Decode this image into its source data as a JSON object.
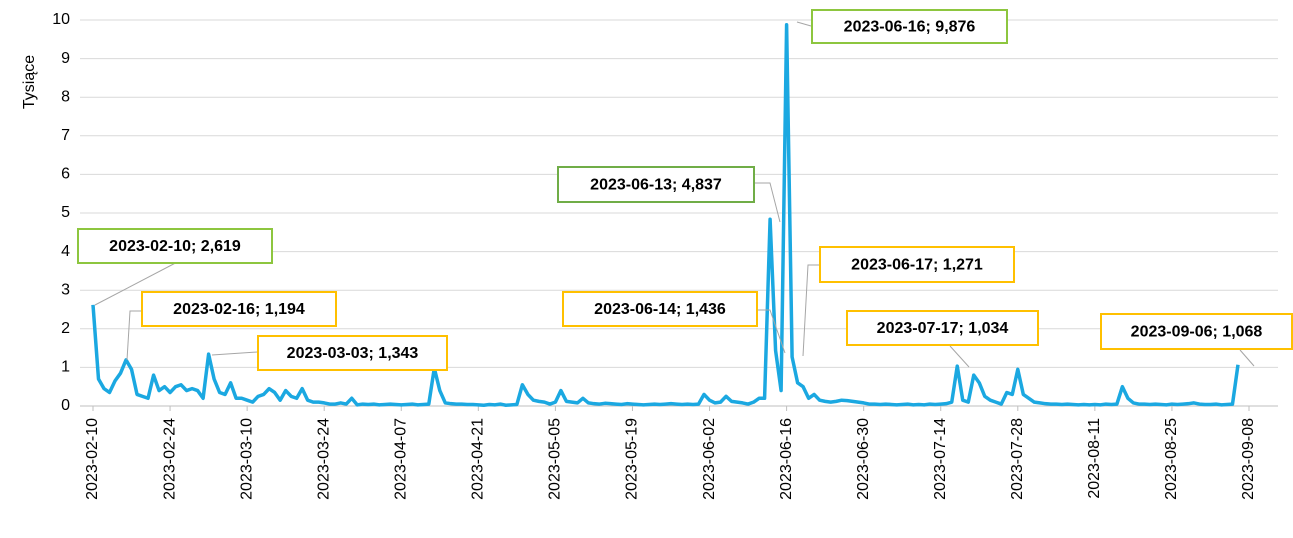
{
  "chart_data": {
    "type": "line",
    "y_label": "Tysiące",
    "color": "#1ba8e1",
    "grid": true,
    "ylim": [
      0,
      10
    ],
    "yticks": [
      0,
      1,
      2,
      3,
      4,
      5,
      6,
      7,
      8,
      9,
      10
    ],
    "xlim": [
      "2023-02-10",
      "2023-09-08"
    ],
    "xticks": [
      "2023-02-10",
      "2023-02-24",
      "2023-03-10",
      "2023-03-24",
      "2023-04-07",
      "2023-04-21",
      "2023-05-05",
      "2023-05-19",
      "2023-06-02",
      "2023-06-16",
      "2023-06-30",
      "2023-07-14",
      "2023-07-28",
      "2023-08-11",
      "2023-08-25",
      "2023-09-08"
    ],
    "x": [
      "2023-02-10",
      "2023-02-11",
      "2023-02-12",
      "2023-02-13",
      "2023-02-14",
      "2023-02-15",
      "2023-02-16",
      "2023-02-17",
      "2023-02-18",
      "2023-02-19",
      "2023-02-20",
      "2023-02-21",
      "2023-02-22",
      "2023-02-23",
      "2023-02-24",
      "2023-02-25",
      "2023-02-26",
      "2023-02-27",
      "2023-02-28",
      "2023-03-01",
      "2023-03-02",
      "2023-03-03",
      "2023-03-04",
      "2023-03-05",
      "2023-03-06",
      "2023-03-07",
      "2023-03-08",
      "2023-03-09",
      "2023-03-10",
      "2023-03-11",
      "2023-03-12",
      "2023-03-13",
      "2023-03-14",
      "2023-03-15",
      "2023-03-16",
      "2023-03-17",
      "2023-03-18",
      "2023-03-19",
      "2023-03-20",
      "2023-03-21",
      "2023-03-22",
      "2023-03-23",
      "2023-03-24",
      "2023-03-25",
      "2023-03-26",
      "2023-03-27",
      "2023-03-28",
      "2023-03-29",
      "2023-03-30",
      "2023-03-31",
      "2023-04-01",
      "2023-04-02",
      "2023-04-03",
      "2023-04-04",
      "2023-04-05",
      "2023-04-06",
      "2023-04-07",
      "2023-04-08",
      "2023-04-09",
      "2023-04-10",
      "2023-04-11",
      "2023-04-12",
      "2023-04-13",
      "2023-04-14",
      "2023-04-15",
      "2023-04-16",
      "2023-04-17",
      "2023-04-18",
      "2023-04-19",
      "2023-04-20",
      "2023-04-21",
      "2023-04-22",
      "2023-04-23",
      "2023-04-24",
      "2023-04-25",
      "2023-04-26",
      "2023-04-27",
      "2023-04-28",
      "2023-04-29",
      "2023-04-30",
      "2023-05-01",
      "2023-05-02",
      "2023-05-03",
      "2023-05-04",
      "2023-05-05",
      "2023-05-06",
      "2023-05-07",
      "2023-05-08",
      "2023-05-09",
      "2023-05-10",
      "2023-05-11",
      "2023-05-12",
      "2023-05-13",
      "2023-05-14",
      "2023-05-15",
      "2023-05-16",
      "2023-05-17",
      "2023-05-18",
      "2023-05-19",
      "2023-05-20",
      "2023-05-21",
      "2023-05-22",
      "2023-05-23",
      "2023-05-24",
      "2023-05-25",
      "2023-05-26",
      "2023-05-27",
      "2023-05-28",
      "2023-05-29",
      "2023-05-30",
      "2023-05-31",
      "2023-06-01",
      "2023-06-02",
      "2023-06-03",
      "2023-06-04",
      "2023-06-05",
      "2023-06-06",
      "2023-06-07",
      "2023-06-08",
      "2023-06-09",
      "2023-06-10",
      "2023-06-11",
      "2023-06-12",
      "2023-06-13",
      "2023-06-14",
      "2023-06-15",
      "2023-06-16",
      "2023-06-17",
      "2023-06-18",
      "2023-06-19",
      "2023-06-20",
      "2023-06-21",
      "2023-06-22",
      "2023-06-23",
      "2023-06-24",
      "2023-06-25",
      "2023-06-26",
      "2023-06-27",
      "2023-06-28",
      "2023-06-29",
      "2023-06-30",
      "2023-07-01",
      "2023-07-02",
      "2023-07-03",
      "2023-07-04",
      "2023-07-05",
      "2023-07-06",
      "2023-07-07",
      "2023-07-08",
      "2023-07-09",
      "2023-07-10",
      "2023-07-11",
      "2023-07-12",
      "2023-07-13",
      "2023-07-14",
      "2023-07-15",
      "2023-07-16",
      "2023-07-17",
      "2023-07-18",
      "2023-07-19",
      "2023-07-20",
      "2023-07-21",
      "2023-07-22",
      "2023-07-23",
      "2023-07-24",
      "2023-07-25",
      "2023-07-26",
      "2023-07-27",
      "2023-07-28",
      "2023-07-29",
      "2023-07-30",
      "2023-07-31",
      "2023-08-01",
      "2023-08-02",
      "2023-08-03",
      "2023-08-04",
      "2023-08-05",
      "2023-08-06",
      "2023-08-07",
      "2023-08-08",
      "2023-08-09",
      "2023-08-10",
      "2023-08-11",
      "2023-08-12",
      "2023-08-13",
      "2023-08-14",
      "2023-08-15",
      "2023-08-16",
      "2023-08-17",
      "2023-08-18",
      "2023-08-19",
      "2023-08-20",
      "2023-08-21",
      "2023-08-22",
      "2023-08-23",
      "2023-08-24",
      "2023-08-25",
      "2023-08-26",
      "2023-08-27",
      "2023-08-28",
      "2023-08-29",
      "2023-08-30",
      "2023-08-31",
      "2023-09-01",
      "2023-09-02",
      "2023-09-03",
      "2023-09-04",
      "2023-09-05",
      "2023-09-06"
    ],
    "values": [
      2.619,
      0.7,
      0.45,
      0.35,
      0.65,
      0.85,
      1.194,
      0.95,
      0.3,
      0.25,
      0.2,
      0.8,
      0.4,
      0.5,
      0.35,
      0.5,
      0.55,
      0.4,
      0.45,
      0.4,
      0.2,
      1.343,
      0.7,
      0.35,
      0.3,
      0.6,
      0.2,
      0.2,
      0.15,
      0.1,
      0.25,
      0.3,
      0.45,
      0.35,
      0.15,
      0.4,
      0.25,
      0.2,
      0.45,
      0.15,
      0.1,
      0.1,
      0.08,
      0.05,
      0.05,
      0.08,
      0.05,
      0.2,
      0.03,
      0.05,
      0.04,
      0.05,
      0.03,
      0.04,
      0.05,
      0.04,
      0.03,
      0.04,
      0.05,
      0.03,
      0.04,
      0.05,
      0.98,
      0.4,
      0.08,
      0.06,
      0.05,
      0.05,
      0.04,
      0.04,
      0.03,
      0.02,
      0.04,
      0.03,
      0.05,
      0.02,
      0.03,
      0.04,
      0.55,
      0.3,
      0.15,
      0.12,
      0.1,
      0.05,
      0.1,
      0.4,
      0.12,
      0.1,
      0.08,
      0.2,
      0.08,
      0.06,
      0.05,
      0.07,
      0.06,
      0.05,
      0.04,
      0.06,
      0.05,
      0.04,
      0.03,
      0.04,
      0.05,
      0.04,
      0.05,
      0.06,
      0.05,
      0.04,
      0.05,
      0.04,
      0.05,
      0.3,
      0.15,
      0.08,
      0.1,
      0.25,
      0.12,
      0.1,
      0.08,
      0.05,
      0.1,
      0.2,
      0.2,
      4.837,
      1.436,
      0.4,
      9.876,
      1.271,
      0.6,
      0.5,
      0.2,
      0.3,
      0.15,
      0.12,
      0.1,
      0.12,
      0.15,
      0.14,
      0.12,
      0.1,
      0.08,
      0.05,
      0.05,
      0.04,
      0.05,
      0.04,
      0.03,
      0.04,
      0.05,
      0.03,
      0.04,
      0.03,
      0.05,
      0.04,
      0.05,
      0.06,
      0.1,
      1.034,
      0.15,
      0.1,
      0.8,
      0.6,
      0.25,
      0.15,
      0.1,
      0.05,
      0.35,
      0.3,
      0.95,
      0.3,
      0.2,
      0.1,
      0.08,
      0.06,
      0.05,
      0.05,
      0.04,
      0.05,
      0.04,
      0.03,
      0.04,
      0.03,
      0.04,
      0.03,
      0.05,
      0.04,
      0.05,
      0.5,
      0.2,
      0.08,
      0.05,
      0.05,
      0.04,
      0.05,
      0.04,
      0.03,
      0.05,
      0.04,
      0.05,
      0.06,
      0.08,
      0.05,
      0.04,
      0.04,
      0.05,
      0.03,
      0.04,
      0.05,
      1.068
    ],
    "annotations": [
      {
        "text": "2023-02-10; 2,619",
        "color": "#8dc63f"
      },
      {
        "text": "2023-02-16; 1,194",
        "color": "#ffc000"
      },
      {
        "text": "2023-03-03; 1,343",
        "color": "#ffc000"
      },
      {
        "text": "2023-06-13; 4,837",
        "color": "#70ad47"
      },
      {
        "text": "2023-06-16; 9,876",
        "color": "#8dc63f"
      },
      {
        "text": "2023-06-17; 1,271",
        "color": "#ffc000"
      },
      {
        "text": "2023-06-14; 1,436",
        "color": "#ffc000"
      },
      {
        "text": "2023-07-17; 1,034",
        "color": "#ffc000"
      },
      {
        "text": "2023-09-06; 1,068",
        "color": "#ffc000"
      }
    ]
  }
}
